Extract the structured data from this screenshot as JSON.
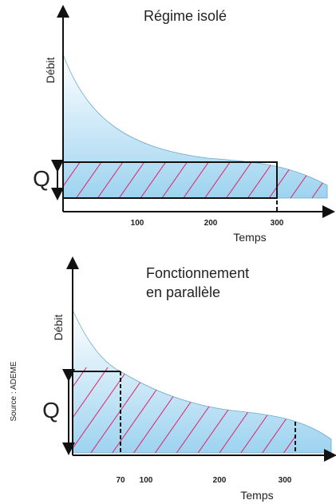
{
  "panels": [
    {
      "title": "Régime isolé",
      "y_label": "Débit",
      "x_label": "Temps",
      "q_label": "Q",
      "ticks": [
        "100",
        "200",
        "300"
      ]
    },
    {
      "title_lines": [
        "Fonctionnement",
        "en parallèle"
      ],
      "y_label": "Débit",
      "x_label": "Temps",
      "q_label": "Q",
      "ticks": [
        "70",
        "100",
        "200",
        "300"
      ]
    }
  ],
  "source": "Source : ADEME"
}
